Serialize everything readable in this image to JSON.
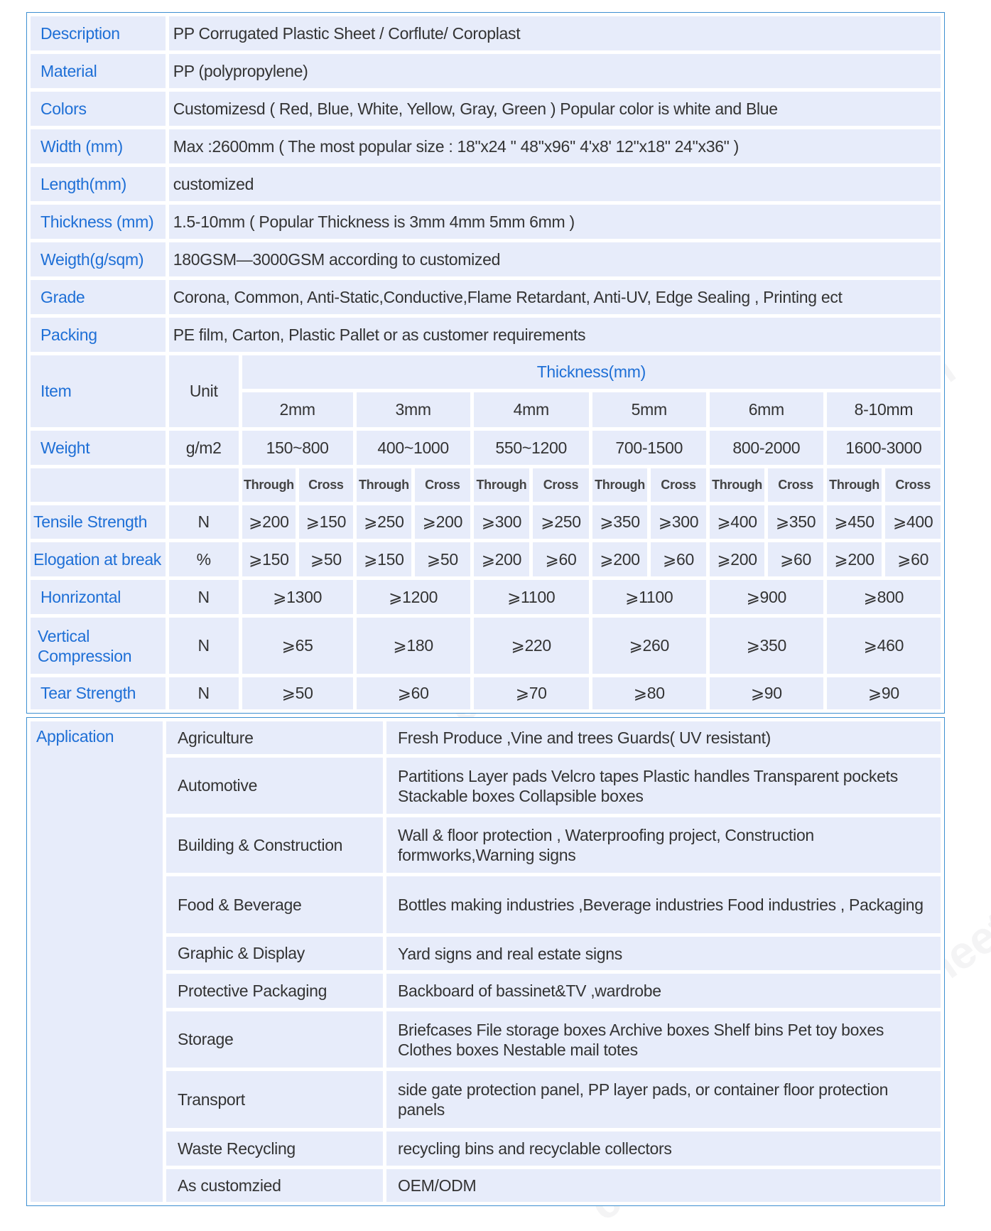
{
  "colors": {
    "border": "#3d8fd1",
    "cell": "#e7ecfa",
    "label": "#1e6fd6",
    "text": "#333333"
  },
  "watermark": "corrugatedplasticsheet.com",
  "specs": [
    {
      "label": "Description",
      "value": "PP Corrugated Plastic Sheet / Corflute/ Coroplast"
    },
    {
      "label": "Material",
      "value": "PP (polypropylene)"
    },
    {
      "label": "Colors",
      "value": "Customizesd ( Red, Blue, White, Yellow, Gray, Green ) Popular color is white and Blue"
    },
    {
      "label": "Width (mm)",
      "value": "Max :2600mm ( The most popular size : 18\"x24 \"  48''x96''  4'x8'  12\"x18\"  24\"x36\" )"
    },
    {
      "label": "Length(mm)",
      "value": "customized"
    },
    {
      "label": "Thickness (mm)",
      "value": "1.5-10mm ( Popular Thickness is 3mm 4mm 5mm 6mm )"
    },
    {
      "label": "Weigth(g/sqm)",
      "value": "180GSM—3000GSM according to customized"
    },
    {
      "label": "Grade",
      "value": "Corona, Common, Anti-Static,Conductive,Flame Retardant, Anti-UV, Edge Sealing , Printing ect"
    },
    {
      "label": "Packing",
      "value": "PE film, Carton, Plastic Pallet or as customer requirements"
    }
  ],
  "properties": {
    "item_label": "Item",
    "unit_label": "Unit",
    "thickness_label": "Thickness(mm)",
    "sizes": [
      "2mm",
      "3mm",
      "4mm",
      "5mm",
      "6mm",
      "8-10mm"
    ],
    "weight": {
      "label": "Weight",
      "unit": "g/m2",
      "values": [
        "150~800",
        "400~1000",
        "550~1200",
        "700-1500",
        "800-2000",
        "1600-3000"
      ]
    },
    "direction_labels": [
      "Through",
      "Cross"
    ],
    "tensile": {
      "label": "Tensile Strength",
      "unit": "N",
      "values": [
        "⩾200",
        "⩾150",
        "⩾250",
        "⩾200",
        "⩾300",
        "⩾250",
        "⩾350",
        "⩾300",
        "⩾400",
        "⩾350",
        "⩾450",
        "⩾400"
      ]
    },
    "elongation": {
      "label": "Elogation at break",
      "unit": "%",
      "values": [
        "⩾150",
        "⩾50",
        "⩾150",
        "⩾50",
        "⩾200",
        "⩾60",
        "⩾200",
        "⩾60",
        "⩾200",
        "⩾60",
        "⩾200",
        "⩾60"
      ]
    },
    "horizontal": {
      "label": "Honrizontal",
      "unit": "N",
      "values": [
        "⩾1300",
        "⩾1200",
        "⩾1100",
        "⩾1100",
        "⩾900",
        "⩾800"
      ]
    },
    "vertical": {
      "label": "Vertical Compression",
      "unit": "N",
      "values": [
        "⩾65",
        "⩾180",
        "⩾220",
        "⩾260",
        "⩾350",
        "⩾460"
      ]
    },
    "tear": {
      "label": "Tear Strength",
      "unit": "N",
      "values": [
        "⩾50",
        "⩾60",
        "⩾70",
        "⩾80",
        "⩾90",
        "⩾90"
      ]
    }
  },
  "application": {
    "label": "Application",
    "rows": [
      {
        "category": "Agriculture",
        "uses": "Fresh Produce ,Vine and trees Guards( UV resistant)"
      },
      {
        "category": "Automotive",
        "uses": "Partitions Layer pads Velcro tapes Plastic handles Transparent pockets Stackable boxes Collapsible boxes"
      },
      {
        "category": "Building & Construction",
        "uses": "Wall & floor protection , Waterproofing project, Construction formworks,Warning signs"
      },
      {
        "category": "Food & Beverage",
        "uses": "Bottles making industries ,Beverage industries  Food industries , Packaging"
      },
      {
        "category": "Graphic & Display",
        "uses": "Yard signs and real estate signs"
      },
      {
        "category": "Protective Packaging",
        "uses": "Backboard of bassinet&TV ,wardrobe"
      },
      {
        "category": "Storage",
        "uses": "Briefcases File storage boxes Archive boxes Shelf bins Pet toy boxes Clothes boxes Nestable mail totes"
      },
      {
        "category": "Transport",
        "uses": "side gate protection panel, PP layer pads, or container floor protection panels"
      },
      {
        "category": "Waste Recycling",
        "uses": "recycling bins and recyclable collectors"
      },
      {
        "category": "As customzied",
        "uses": "OEM/ODM"
      }
    ]
  }
}
